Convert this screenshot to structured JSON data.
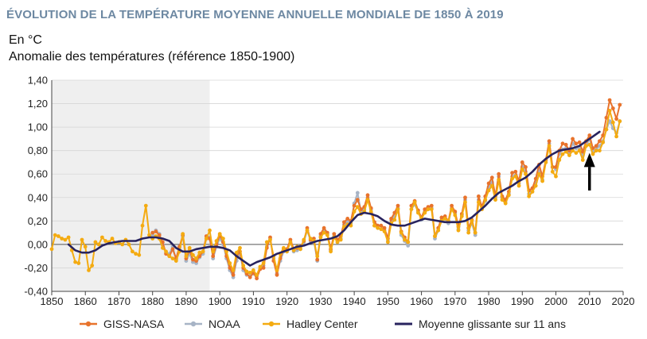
{
  "header": {
    "title": "ÉVOLUTION DE LA TEMPÉRATURE MOYENNE ANNUELLE MONDIALE DE 1850 À 2019",
    "unit": "En °C",
    "ylabel": "Anomalie des températures (référence 1850-1900)"
  },
  "colors": {
    "GISS-NASA": "#e8732c",
    "NOAA": "#a7b4c6",
    "Hadley Center": "#f4ab11",
    "Moyenne glissante sur 11 ans": "#28235e",
    "shaded_region": "#efefef",
    "arrow": "#000000"
  },
  "chart_data": {
    "type": "line",
    "title": "ÉVOLUTION DE LA TEMPÉRATURE MOYENNE ANNUELLE MONDIALE DE 1850 À 2019",
    "ylabel": "Anomalie des températures (référence 1850-1900)",
    "unit": "En °C",
    "xlim": [
      1850,
      2020
    ],
    "ylim": [
      -0.4,
      1.4
    ],
    "x_ticks": [
      "1850",
      "1860",
      "1870",
      "1880",
      "1890",
      "1900",
      "1910",
      "1920",
      "1930",
      "1940",
      "1950",
      "1960",
      "1970",
      "1980",
      "1990",
      "2000",
      "2010",
      "2020"
    ],
    "y_ticks": [
      "-0,40",
      "-0,20",
      "0,00",
      "0,20",
      "0,40",
      "0,60",
      "0,80",
      "1,00",
      "1,20",
      "1,40"
    ],
    "grid": "horizontal",
    "legend_position": "bottom",
    "shaded_period": [
      1850,
      1897
    ],
    "arrow_year": 2010,
    "series": [
      {
        "name": "GISS-NASA",
        "markers": true,
        "x": [
          1880,
          1881,
          1882,
          1883,
          1884,
          1885,
          1886,
          1887,
          1888,
          1889,
          1890,
          1891,
          1892,
          1893,
          1894,
          1895,
          1896,
          1897,
          1898,
          1899,
          1900,
          1901,
          1902,
          1903,
          1904,
          1905,
          1906,
          1907,
          1908,
          1909,
          1910,
          1911,
          1912,
          1913,
          1914,
          1915,
          1916,
          1917,
          1918,
          1919,
          1920,
          1921,
          1922,
          1923,
          1924,
          1925,
          1926,
          1927,
          1928,
          1929,
          1930,
          1931,
          1932,
          1933,
          1934,
          1935,
          1936,
          1937,
          1938,
          1939,
          1940,
          1941,
          1942,
          1943,
          1944,
          1945,
          1946,
          1947,
          1948,
          1949,
          1950,
          1951,
          1952,
          1953,
          1954,
          1955,
          1956,
          1957,
          1958,
          1959,
          1960,
          1961,
          1962,
          1963,
          1964,
          1965,
          1966,
          1967,
          1968,
          1969,
          1970,
          1971,
          1972,
          1973,
          1974,
          1975,
          1976,
          1977,
          1978,
          1979,
          1980,
          1981,
          1982,
          1983,
          1984,
          1985,
          1986,
          1987,
          1988,
          1989,
          1990,
          1991,
          1992,
          1993,
          1994,
          1995,
          1996,
          1997,
          1998,
          1999,
          2000,
          2001,
          2002,
          2003,
          2004,
          2005,
          2006,
          2007,
          2008,
          2009,
          2010,
          2011,
          2012,
          2013,
          2014,
          2015,
          2016,
          2017,
          2018,
          2019
        ],
        "values": [
          0.1,
          0.11,
          0.08,
          0.02,
          -0.08,
          -0.1,
          -0.04,
          -0.12,
          -0.02,
          0.08,
          -0.12,
          -0.05,
          -0.13,
          -0.14,
          -0.1,
          -0.06,
          0.07,
          0.05,
          -0.1,
          0.0,
          0.08,
          0.02,
          -0.1,
          -0.2,
          -0.26,
          -0.1,
          -0.06,
          -0.2,
          -0.25,
          -0.28,
          -0.24,
          -0.29,
          -0.21,
          -0.2,
          -0.03,
          0.06,
          -0.14,
          -0.26,
          -0.12,
          -0.04,
          -0.04,
          0.04,
          -0.04,
          -0.03,
          -0.02,
          0.03,
          0.14,
          0.04,
          0.05,
          -0.13,
          0.09,
          0.14,
          0.1,
          -0.04,
          0.09,
          0.04,
          0.07,
          0.19,
          0.22,
          0.2,
          0.33,
          0.38,
          0.3,
          0.32,
          0.42,
          0.31,
          0.19,
          0.16,
          0.16,
          0.14,
          0.05,
          0.22,
          0.27,
          0.33,
          0.11,
          0.06,
          0.02,
          0.33,
          0.37,
          0.29,
          0.23,
          0.3,
          0.32,
          0.33,
          0.07,
          0.14,
          0.23,
          0.24,
          0.2,
          0.33,
          0.28,
          0.15,
          0.26,
          0.4,
          0.14,
          0.21,
          0.1,
          0.41,
          0.32,
          0.41,
          0.52,
          0.57,
          0.41,
          0.6,
          0.41,
          0.38,
          0.45,
          0.61,
          0.62,
          0.54,
          0.7,
          0.66,
          0.46,
          0.48,
          0.56,
          0.68,
          0.58,
          0.72,
          0.88,
          0.66,
          0.66,
          0.8,
          0.86,
          0.85,
          0.8,
          0.9,
          0.86,
          0.87,
          0.79,
          0.88,
          0.93,
          0.82,
          0.84,
          0.88,
          0.93,
          1.08,
          1.23,
          1.16,
          1.07,
          1.19
        ]
      },
      {
        "name": "NOAA",
        "markers": true,
        "x": [
          1880,
          1881,
          1882,
          1883,
          1884,
          1885,
          1886,
          1887,
          1888,
          1889,
          1890,
          1891,
          1892,
          1893,
          1894,
          1895,
          1896,
          1897,
          1898,
          1899,
          1900,
          1901,
          1902,
          1903,
          1904,
          1905,
          1906,
          1907,
          1908,
          1909,
          1910,
          1911,
          1912,
          1913,
          1914,
          1915,
          1916,
          1917,
          1918,
          1919,
          1920,
          1921,
          1922,
          1923,
          1924,
          1925,
          1926,
          1927,
          1928,
          1929,
          1930,
          1931,
          1932,
          1933,
          1934,
          1935,
          1936,
          1937,
          1938,
          1939,
          1940,
          1941,
          1942,
          1943,
          1944,
          1945,
          1946,
          1947,
          1948,
          1949,
          1950,
          1951,
          1952,
          1953,
          1954,
          1955,
          1956,
          1957,
          1958,
          1959,
          1960,
          1961,
          1962,
          1963,
          1964,
          1965,
          1966,
          1967,
          1968,
          1969,
          1970,
          1971,
          1972,
          1973,
          1974,
          1975,
          1976,
          1977,
          1978,
          1979,
          1980,
          1981,
          1982,
          1983,
          1984,
          1985,
          1986,
          1987,
          1988,
          1989,
          1990,
          1991,
          1992,
          1993,
          1994,
          1995,
          1996,
          1997,
          1998,
          1999,
          2000,
          2001,
          2002,
          2003,
          2004,
          2005,
          2006,
          2007,
          2008,
          2009,
          2010,
          2011,
          2012,
          2013,
          2014,
          2015,
          2016,
          2017,
          2018,
          2019
        ],
        "values": [
          0.08,
          0.12,
          0.09,
          0.0,
          -0.07,
          -0.08,
          -0.02,
          -0.13,
          -0.03,
          0.07,
          -0.14,
          -0.08,
          -0.15,
          -0.16,
          -0.11,
          -0.08,
          0.05,
          0.06,
          -0.12,
          -0.02,
          0.05,
          0.0,
          -0.12,
          -0.22,
          -0.28,
          -0.14,
          -0.08,
          -0.22,
          -0.26,
          -0.27,
          -0.25,
          -0.27,
          -0.2,
          -0.18,
          -0.02,
          0.05,
          -0.12,
          -0.25,
          -0.14,
          -0.06,
          -0.06,
          0.02,
          -0.06,
          -0.05,
          -0.04,
          0.02,
          0.12,
          0.03,
          0.03,
          -0.14,
          0.07,
          0.12,
          0.09,
          -0.05,
          0.07,
          0.02,
          0.05,
          0.17,
          0.2,
          0.18,
          0.35,
          0.44,
          0.28,
          0.3,
          0.4,
          0.3,
          0.16,
          0.14,
          0.13,
          0.12,
          0.03,
          0.2,
          0.24,
          0.31,
          0.08,
          0.03,
          -0.01,
          0.3,
          0.34,
          0.28,
          0.21,
          0.28,
          0.3,
          0.31,
          0.05,
          0.12,
          0.21,
          0.22,
          0.18,
          0.31,
          0.27,
          0.13,
          0.25,
          0.38,
          0.12,
          0.18,
          0.08,
          0.38,
          0.3,
          0.37,
          0.49,
          0.53,
          0.39,
          0.58,
          0.4,
          0.36,
          0.43,
          0.58,
          0.59,
          0.52,
          0.66,
          0.62,
          0.43,
          0.45,
          0.53,
          0.64,
          0.55,
          0.72,
          0.86,
          0.66,
          0.64,
          0.77,
          0.81,
          0.82,
          0.78,
          0.86,
          0.82,
          0.82,
          0.76,
          0.84,
          0.9,
          0.79,
          0.81,
          0.84,
          0.88,
          0.98,
          1.05,
          0.99,
          0.95,
          1.05
        ]
      },
      {
        "name": "Hadley Center",
        "markers": true,
        "x": [
          1850,
          1851,
          1852,
          1853,
          1854,
          1855,
          1856,
          1857,
          1858,
          1859,
          1860,
          1861,
          1862,
          1863,
          1864,
          1865,
          1866,
          1867,
          1868,
          1869,
          1870,
          1871,
          1872,
          1873,
          1874,
          1875,
          1876,
          1877,
          1878,
          1879,
          1880,
          1881,
          1882,
          1883,
          1884,
          1885,
          1886,
          1887,
          1888,
          1889,
          1890,
          1891,
          1892,
          1893,
          1894,
          1895,
          1896,
          1897,
          1898,
          1899,
          1900,
          1901,
          1902,
          1903,
          1904,
          1905,
          1906,
          1907,
          1908,
          1909,
          1910,
          1911,
          1912,
          1913,
          1914,
          1915,
          1916,
          1917,
          1918,
          1919,
          1920,
          1921,
          1922,
          1923,
          1924,
          1925,
          1926,
          1927,
          1928,
          1929,
          1930,
          1931,
          1932,
          1933,
          1934,
          1935,
          1936,
          1937,
          1938,
          1939,
          1940,
          1941,
          1942,
          1943,
          1944,
          1945,
          1946,
          1947,
          1948,
          1949,
          1950,
          1951,
          1952,
          1953,
          1954,
          1955,
          1956,
          1957,
          1958,
          1959,
          1960,
          1961,
          1962,
          1963,
          1964,
          1965,
          1966,
          1967,
          1968,
          1969,
          1970,
          1971,
          1972,
          1973,
          1974,
          1975,
          1976,
          1977,
          1978,
          1979,
          1980,
          1981,
          1982,
          1983,
          1984,
          1985,
          1986,
          1987,
          1988,
          1989,
          1990,
          1991,
          1992,
          1993,
          1994,
          1995,
          1996,
          1997,
          1998,
          1999,
          2000,
          2001,
          2002,
          2003,
          2004,
          2005,
          2006,
          2007,
          2008,
          2009,
          2010,
          2011,
          2012,
          2013,
          2014,
          2015,
          2016,
          2017,
          2018,
          2019
        ],
        "values": [
          -0.04,
          0.08,
          0.07,
          0.05,
          0.04,
          0.06,
          -0.05,
          -0.15,
          -0.16,
          0.04,
          -0.02,
          -0.22,
          -0.18,
          0.02,
          0.0,
          0.06,
          0.03,
          0.02,
          0.05,
          0.01,
          0.02,
          0.0,
          0.04,
          0.0,
          -0.06,
          -0.08,
          -0.09,
          0.16,
          0.33,
          0.08,
          0.05,
          0.07,
          0.05,
          -0.03,
          -0.06,
          -0.1,
          -0.12,
          -0.14,
          -0.06,
          0.09,
          -0.1,
          -0.03,
          -0.09,
          -0.12,
          -0.07,
          -0.06,
          0.05,
          0.12,
          -0.06,
          0.03,
          0.09,
          0.05,
          -0.06,
          -0.16,
          -0.22,
          -0.07,
          -0.03,
          -0.18,
          -0.23,
          -0.24,
          -0.22,
          -0.26,
          -0.19,
          -0.16,
          0.02,
          0.04,
          -0.1,
          -0.22,
          -0.08,
          -0.03,
          -0.06,
          0.02,
          -0.05,
          -0.02,
          -0.04,
          0.04,
          0.12,
          0.05,
          0.03,
          -0.1,
          0.06,
          0.1,
          0.08,
          -0.06,
          0.06,
          0.02,
          0.04,
          0.15,
          0.17,
          0.16,
          0.28,
          0.32,
          0.26,
          0.28,
          0.38,
          0.28,
          0.16,
          0.14,
          0.13,
          0.11,
          0.02,
          0.18,
          0.21,
          0.3,
          0.1,
          0.04,
          0.02,
          0.3,
          0.36,
          0.27,
          0.22,
          0.27,
          0.3,
          0.3,
          0.07,
          0.12,
          0.2,
          0.22,
          0.2,
          0.3,
          0.25,
          0.12,
          0.24,
          0.36,
          0.1,
          0.2,
          0.1,
          0.36,
          0.3,
          0.38,
          0.46,
          0.5,
          0.38,
          0.55,
          0.38,
          0.35,
          0.42,
          0.56,
          0.58,
          0.5,
          0.64,
          0.6,
          0.41,
          0.45,
          0.5,
          0.6,
          0.54,
          0.7,
          0.84,
          0.62,
          0.58,
          0.72,
          0.77,
          0.79,
          0.76,
          0.8,
          0.78,
          0.8,
          0.72,
          0.84,
          0.85,
          0.77,
          0.8,
          0.8,
          0.87,
          0.98,
          1.14,
          1.04,
          0.92,
          1.05
        ]
      },
      {
        "name": "Moyenne glissante sur 11 ans",
        "markers": false,
        "x": [
          1855,
          1857,
          1859,
          1861,
          1863,
          1865,
          1867,
          1869,
          1871,
          1873,
          1875,
          1877,
          1879,
          1881,
          1883,
          1885,
          1887,
          1889,
          1891,
          1893,
          1895,
          1897,
          1899,
          1901,
          1903,
          1905,
          1907,
          1909,
          1911,
          1913,
          1915,
          1917,
          1919,
          1921,
          1923,
          1925,
          1927,
          1929,
          1931,
          1933,
          1935,
          1937,
          1939,
          1941,
          1943,
          1945,
          1947,
          1949,
          1951,
          1953,
          1955,
          1957,
          1959,
          1961,
          1963,
          1965,
          1967,
          1969,
          1971,
          1973,
          1975,
          1977,
          1979,
          1981,
          1983,
          1985,
          1987,
          1989,
          1991,
          1993,
          1995,
          1997,
          1999,
          2001,
          2003,
          2005,
          2007,
          2009,
          2011,
          2013
        ],
        "values": [
          0.0,
          -0.05,
          -0.07,
          -0.07,
          -0.05,
          -0.01,
          0.01,
          0.02,
          0.03,
          0.03,
          0.03,
          0.05,
          0.06,
          0.06,
          0.05,
          0.03,
          -0.03,
          -0.06,
          -0.06,
          -0.04,
          -0.03,
          -0.02,
          -0.02,
          -0.03,
          -0.05,
          -0.1,
          -0.14,
          -0.18,
          -0.15,
          -0.13,
          -0.11,
          -0.08,
          -0.06,
          -0.04,
          -0.02,
          -0.01,
          0.01,
          0.03,
          0.04,
          0.05,
          0.07,
          0.12,
          0.19,
          0.25,
          0.27,
          0.26,
          0.24,
          0.2,
          0.17,
          0.16,
          0.16,
          0.18,
          0.2,
          0.22,
          0.21,
          0.2,
          0.19,
          0.19,
          0.19,
          0.2,
          0.23,
          0.28,
          0.33,
          0.39,
          0.44,
          0.47,
          0.5,
          0.54,
          0.57,
          0.62,
          0.68,
          0.73,
          0.77,
          0.8,
          0.81,
          0.82,
          0.84,
          0.88,
          0.92,
          0.96
        ]
      }
    ]
  }
}
